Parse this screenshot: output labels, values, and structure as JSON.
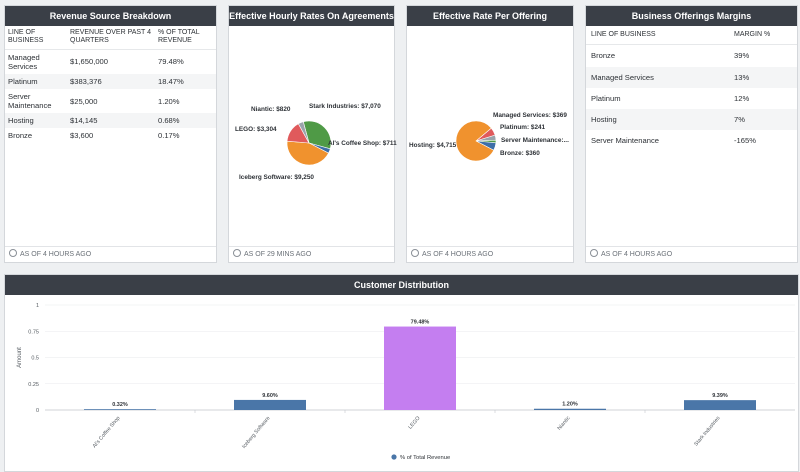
{
  "revenue_card": {
    "title": "Revenue Source Breakdown",
    "headers": [
      "LINE OF BUSINESS",
      "REVENUE OVER PAST 4 QUARTERS",
      "% OF TOTAL REVENUE"
    ],
    "rows": [
      {
        "business": "Managed Services",
        "revenue": "$1,650,000",
        "pct": "79.48%"
      },
      {
        "business": "Platinum",
        "revenue": "$383,376",
        "pct": "18.47%"
      },
      {
        "business": "Server Maintenance",
        "revenue": "$25,000",
        "pct": "1.20%"
      },
      {
        "business": "Hosting",
        "revenue": "$14,145",
        "pct": "0.68%"
      },
      {
        "business": "Bronze",
        "revenue": "$3,600",
        "pct": "0.17%"
      }
    ],
    "footer": "AS OF 4 HOURS AGO"
  },
  "hourly_card": {
    "title": "Effective Hourly Rates On Agreements",
    "footer": "AS OF 29 MINS AGO"
  },
  "offering_card": {
    "title": "Effective Rate Per Offering",
    "footer": "AS OF 4 HOURS AGO"
  },
  "margins_card": {
    "title": "Business Offerings Margins",
    "headers": [
      "LINE OF BUSINESS",
      "MARGIN %"
    ],
    "rows": [
      {
        "business": "Bronze",
        "margin": "39%"
      },
      {
        "business": "Managed Services",
        "margin": "13%"
      },
      {
        "business": "Platinum",
        "margin": "12%"
      },
      {
        "business": "Hosting",
        "margin": "7%"
      },
      {
        "business": "Server Maintenance",
        "margin": "-165%"
      }
    ],
    "footer": "AS OF 4 HOURS AGO"
  },
  "distribution_card": {
    "title": "Customer Distribution"
  },
  "chart_data": [
    {
      "type": "pie",
      "title": "Effective Hourly Rates On Agreements",
      "slices": [
        {
          "label": "Stark Industries: $7,070",
          "value": 7070,
          "color": "#4f9a46"
        },
        {
          "label": "Al's Coffee Shop: $711",
          "value": 711,
          "color": "#3e6fa8"
        },
        {
          "label": "Iceberg Software: $9,250",
          "value": 9250,
          "color": "#f0922e"
        },
        {
          "label": "LEGO: $3,304",
          "value": 3304,
          "color": "#e05a5c"
        },
        {
          "label": "Niantic: $820",
          "value": 820,
          "color": "#9aa3ab"
        }
      ]
    },
    {
      "type": "pie",
      "title": "Effective Rate Per Offering",
      "slices": [
        {
          "label": "Managed Services: $369",
          "value": 369,
          "color": "#e05a5c"
        },
        {
          "label": "Platinum: $241",
          "value": 241,
          "color": "#9aa3ab"
        },
        {
          "label": "Server Maintenance:...",
          "value": 120,
          "color": "#4f9a46"
        },
        {
          "label": "Bronze: $360",
          "value": 360,
          "color": "#3e6fa8"
        },
        {
          "label": "Hosting: $4,715",
          "value": 4715,
          "color": "#f0922e"
        }
      ]
    },
    {
      "type": "bar",
      "title": "Customer Distribution",
      "categories": [
        "Al's Coffee Shop",
        "Iceberg Software",
        "LEGO",
        "Niantic",
        "Stark Industries"
      ],
      "series": [
        {
          "name": "% of Total Revenue",
          "values": [
            0.0032,
            0.096,
            0.7948,
            0.012,
            0.0939
          ],
          "labels": [
            "0.32%",
            "9.60%",
            "79.48%",
            "1.20%",
            "9.39%"
          ],
          "colors": [
            "#4a76a8",
            "#4a76a8",
            "#c47ef0",
            "#4a76a8",
            "#4a76a8"
          ]
        }
      ],
      "ylabel": "Amount",
      "ylim": [
        0,
        1
      ],
      "yticks": [
        "0",
        "0.25",
        "0.5",
        "0.75",
        "1"
      ],
      "legend": "% of Total Revenue"
    }
  ]
}
